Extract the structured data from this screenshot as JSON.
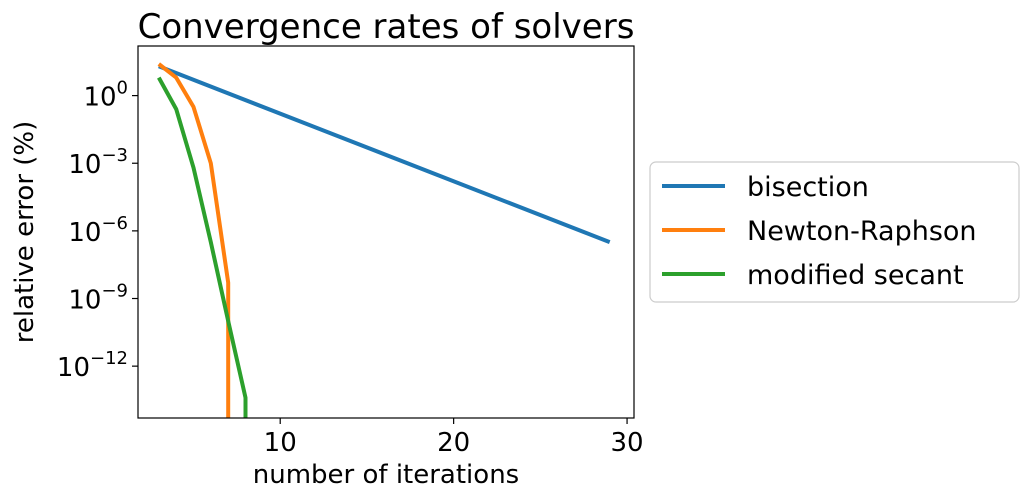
{
  "chart_data": {
    "type": "line",
    "title": "Convergence rates of solvers",
    "xlabel": "number of iterations",
    "ylabel": "relative error (%)",
    "xlim": [
      1.8,
      30.4
    ],
    "ylim_log10": [
      -14.3,
      2.2
    ],
    "yscale": "log",
    "x_ticks": [
      10,
      20,
      30
    ],
    "y_ticks": [
      {
        "base": "10",
        "exp": "0",
        "log10": 0
      },
      {
        "base": "10",
        "exp": "−3",
        "log10": -3
      },
      {
        "base": "10",
        "exp": "−6",
        "log10": -6
      },
      {
        "base": "10",
        "exp": "−9",
        "log10": -9
      },
      {
        "base": "10",
        "exp": "−12",
        "log10": -12
      }
    ],
    "legend_position": "center-right, outside plot",
    "series": [
      {
        "name": "bisection",
        "color": "#1f77b4",
        "x": [
          3,
          29
        ],
        "log10_y": [
          1.3,
          -6.5
        ]
      },
      {
        "name": "Newton-Raphson",
        "color": "#ff7f0e",
        "x": [
          3,
          4,
          5,
          6,
          7,
          7
        ],
        "log10_y": [
          1.4,
          0.8,
          -0.5,
          -3.0,
          -8.3,
          -14.3
        ]
      },
      {
        "name": "modified secant",
        "color": "#2ca02c",
        "x": [
          3,
          4,
          5,
          6,
          7,
          8,
          8
        ],
        "log10_y": [
          0.8,
          -0.6,
          -3.2,
          -6.5,
          -10.0,
          -13.4,
          -14.3
        ]
      }
    ]
  }
}
